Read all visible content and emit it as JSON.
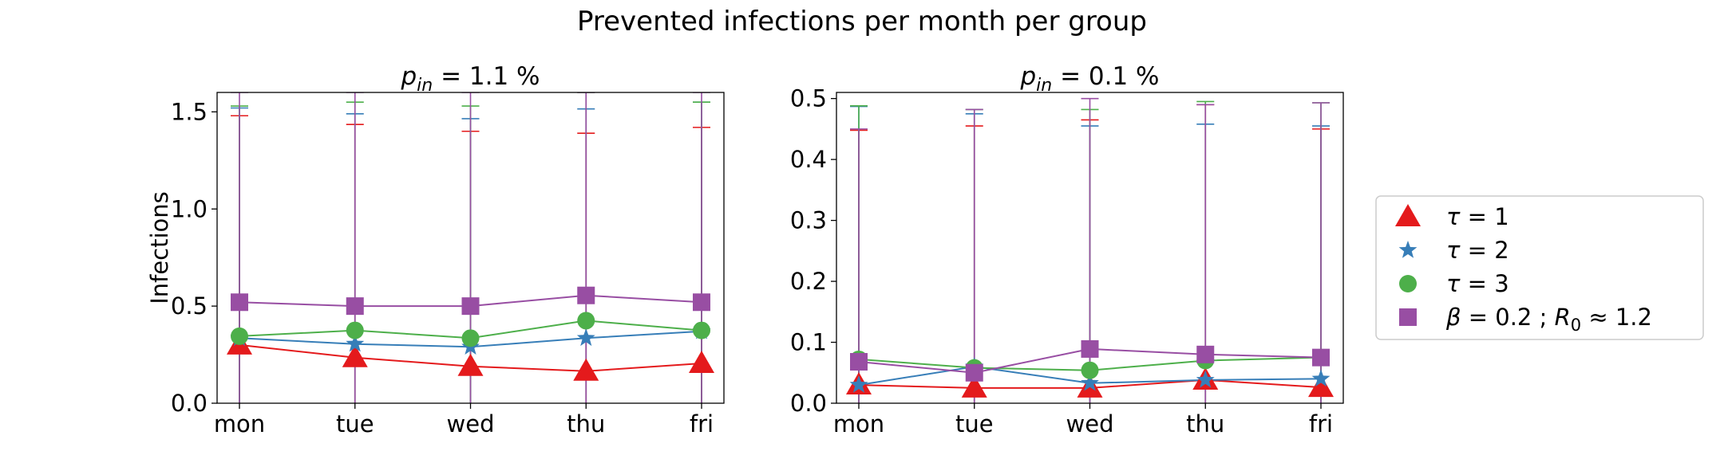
{
  "suptitle": "Prevented infections per month per group",
  "colors": {
    "tau1": "#e41a1c",
    "tau2": "#377eb8",
    "tau3": "#4daf4a",
    "beta": "#984ea3"
  },
  "legend": {
    "placement": "right, outside panels",
    "entries": [
      {
        "marker": "triangle",
        "color_key": "tau1",
        "prefix": "τ",
        "rest": " = 1"
      },
      {
        "marker": "star",
        "color_key": "tau2",
        "prefix": "τ",
        "rest": " = 2"
      },
      {
        "marker": "circle",
        "color_key": "tau3",
        "prefix": "τ",
        "rest": " = 3"
      },
      {
        "marker": "square",
        "color_key": "beta",
        "prefix": "β",
        "rest": " = 0.2 ; ",
        "prefix2": "R",
        "sub2": "0",
        "rest2": " ≈ 1.2"
      }
    ]
  },
  "chart_data": [
    {
      "type": "line",
      "title_main": "p",
      "title_sub": "in",
      "title_rest": " = 1.1 %",
      "ylabel": "Infections",
      "categories": [
        "mon",
        "tue",
        "wed",
        "thu",
        "fri"
      ],
      "ylim": [
        0,
        1.6
      ],
      "yticks": [
        0.0,
        0.5,
        1.0,
        1.5
      ],
      "ytick_labels": [
        "0.0",
        "0.5",
        "1.0",
        "1.5"
      ],
      "grid": false,
      "series": [
        {
          "key": "tau1",
          "marker": "triangle",
          "values": [
            0.3,
            0.235,
            0.19,
            0.165,
            0.205
          ],
          "err_low": [
            0,
            0,
            0,
            0,
            0
          ],
          "err_high": [
            1.48,
            1.435,
            1.4,
            1.39,
            1.42
          ]
        },
        {
          "key": "tau2",
          "marker": "star",
          "values": [
            0.335,
            0.305,
            0.29,
            0.335,
            0.37
          ],
          "err_low": [
            0,
            0,
            0,
            0,
            0
          ],
          "err_high": [
            1.52,
            1.49,
            1.465,
            1.515,
            1.55
          ]
        },
        {
          "key": "tau3",
          "marker": "circle",
          "values": [
            0.345,
            0.375,
            0.335,
            0.425,
            0.375
          ],
          "err_low": [
            0,
            0,
            0,
            0,
            0
          ],
          "err_high": [
            1.53,
            1.55,
            1.53,
            1.6,
            1.55
          ]
        },
        {
          "key": "beta",
          "marker": "square",
          "values": [
            0.52,
            0.5,
            0.5,
            0.555,
            0.52
          ],
          "err_low": [
            0,
            0,
            0,
            0,
            0
          ],
          "err_high": [
            1.6,
            1.6,
            1.6,
            1.6,
            1.6
          ]
        }
      ]
    },
    {
      "type": "line",
      "title_main": "p",
      "title_sub": "in",
      "title_rest": " = 0.1 %",
      "ylabel": "",
      "categories": [
        "mon",
        "tue",
        "wed",
        "thu",
        "fri"
      ],
      "ylim": [
        0,
        0.51
      ],
      "yticks": [
        0.0,
        0.1,
        0.2,
        0.3,
        0.4,
        0.5
      ],
      "ytick_labels": [
        "0.0",
        "0.1",
        "0.2",
        "0.3",
        "0.4",
        "0.5"
      ],
      "grid": false,
      "series": [
        {
          "key": "tau1",
          "marker": "triangle",
          "values": [
            0.03,
            0.025,
            0.025,
            0.038,
            0.026
          ],
          "err_low": [
            0,
            0,
            0,
            0,
            0
          ],
          "err_high": [
            0.448,
            0.455,
            0.465,
            0.49,
            0.45
          ]
        },
        {
          "key": "tau2",
          "marker": "star",
          "values": [
            0.03,
            0.06,
            0.033,
            0.038,
            0.04
          ],
          "err_low": [
            0,
            0,
            0,
            0,
            0
          ],
          "err_high": [
            0.487,
            0.475,
            0.455,
            0.458,
            0.455
          ]
        },
        {
          "key": "tau3",
          "marker": "circle",
          "values": [
            0.072,
            0.058,
            0.054,
            0.07,
            0.075
          ],
          "err_low": [
            0,
            0,
            0,
            0,
            0
          ],
          "err_high": [
            0.488,
            0.482,
            0.482,
            0.495,
            0.493
          ]
        },
        {
          "key": "beta",
          "marker": "square",
          "values": [
            0.068,
            0.05,
            0.089,
            0.08,
            0.075
          ],
          "err_low": [
            0,
            0,
            0,
            0,
            0
          ],
          "err_high": [
            0.45,
            0.482,
            0.5,
            0.49,
            0.493
          ]
        }
      ]
    }
  ]
}
